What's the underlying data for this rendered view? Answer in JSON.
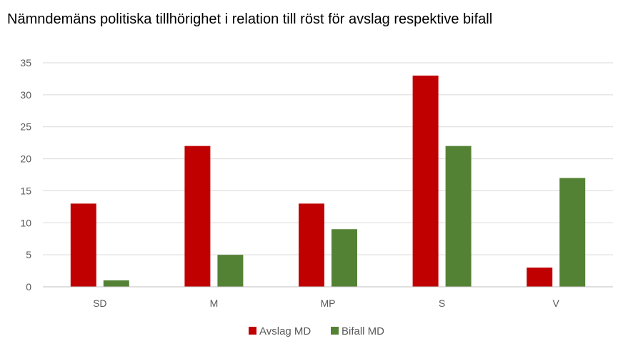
{
  "chart_data": {
    "type": "bar",
    "title": "Nämndemäns politiska tillhörighet i relation till röst för avslag respektive bifall",
    "xlabel": "",
    "ylabel": "",
    "categories": [
      "SD",
      "M",
      "MP",
      "S",
      "V"
    ],
    "series": [
      {
        "name": "Avslag MD",
        "color": "#C00000",
        "values": [
          13,
          22,
          13,
          33,
          3
        ]
      },
      {
        "name": "Bifall MD",
        "color": "#548235",
        "values": [
          1,
          5,
          9,
          22,
          17
        ]
      }
    ],
    "ylim": [
      0,
      35
    ],
    "yticks": [
      0,
      5,
      10,
      15,
      20,
      25,
      30,
      35
    ],
    "grid": true,
    "legend": "bottom-center"
  }
}
